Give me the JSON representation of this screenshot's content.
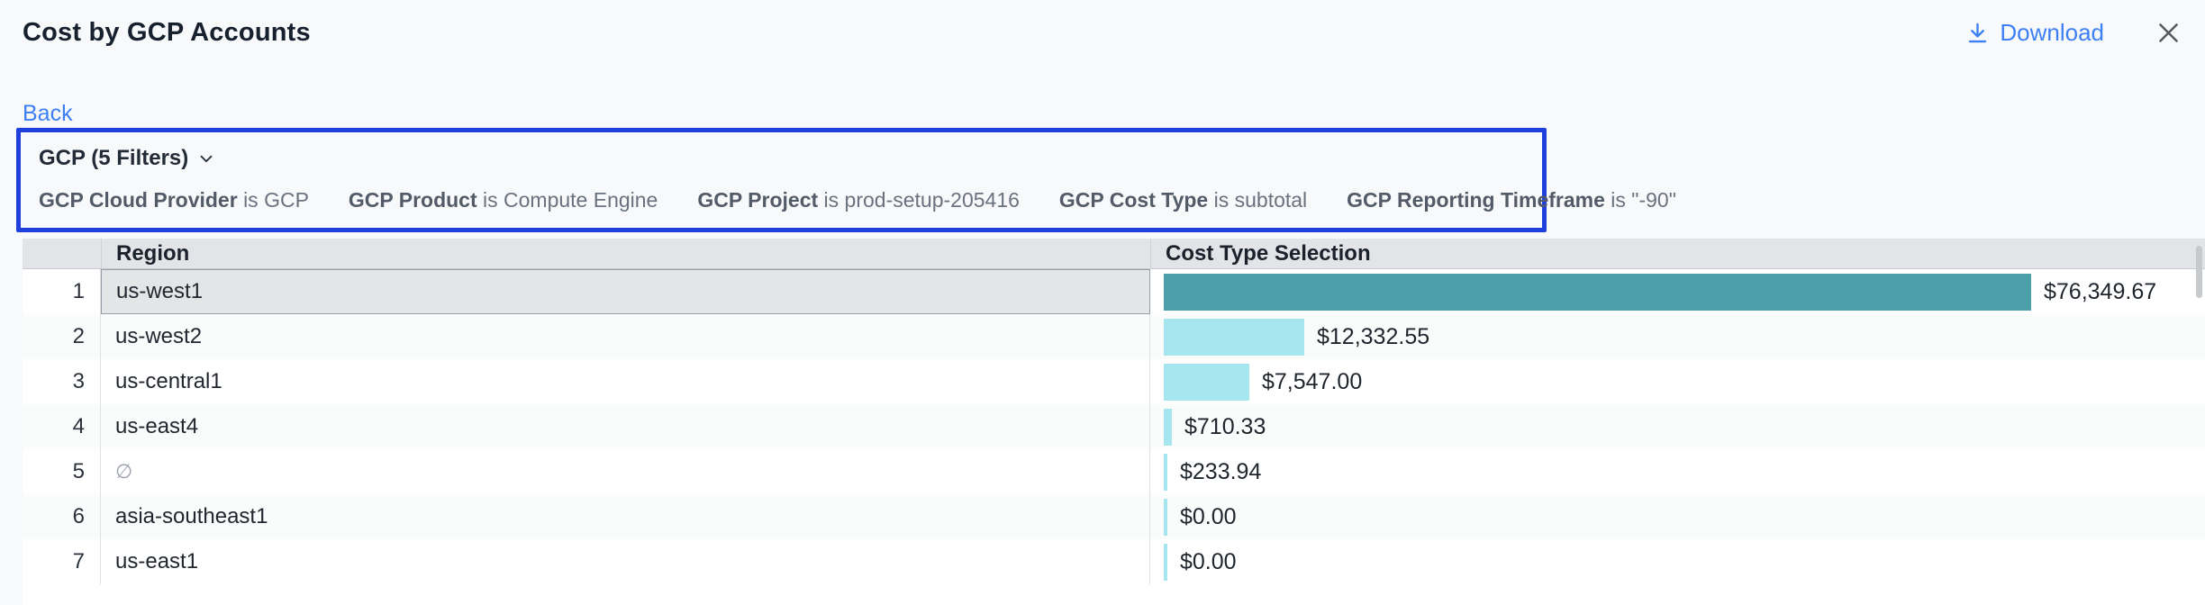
{
  "header": {
    "title": "Cost by GCP Accounts",
    "download_label": "Download"
  },
  "nav": {
    "back_label": "Back"
  },
  "filter_panel": {
    "summary_label": "GCP (5 Filters)",
    "filters": [
      {
        "field": "GCP Cloud Provider",
        "condition": "is GCP"
      },
      {
        "field": "GCP Product",
        "condition": "is Compute Engine"
      },
      {
        "field": "GCP Project",
        "condition": "is prod-setup-205416"
      },
      {
        "field": "GCP Cost Type",
        "condition": "is subtotal"
      },
      {
        "field": "GCP Reporting Timeframe",
        "condition": "is \"-90\""
      }
    ]
  },
  "table": {
    "columns": [
      "Region",
      "Cost Type Selection"
    ],
    "max_value": 76349.67,
    "rows": [
      {
        "index": 1,
        "region": "us-west1",
        "value": 76349.67,
        "value_label": "$76,349.67",
        "selected": true,
        "region_empty": false
      },
      {
        "index": 2,
        "region": "us-west2",
        "value": 12332.55,
        "value_label": "$12,332.55",
        "selected": false,
        "region_empty": false
      },
      {
        "index": 3,
        "region": "us-central1",
        "value": 7547.0,
        "value_label": "$7,547.00",
        "selected": false,
        "region_empty": false
      },
      {
        "index": 4,
        "region": "us-east4",
        "value": 710.33,
        "value_label": "$710.33",
        "selected": false,
        "region_empty": false
      },
      {
        "index": 5,
        "region": "∅",
        "value": 233.94,
        "value_label": "$233.94",
        "selected": false,
        "region_empty": true
      },
      {
        "index": 6,
        "region": "asia-southeast1",
        "value": 0,
        "value_label": "$0.00",
        "selected": false,
        "region_empty": false
      },
      {
        "index": 7,
        "region": "us-east1",
        "value": 0,
        "value_label": "$0.00",
        "selected": false,
        "region_empty": false
      }
    ]
  },
  "chart_data": {
    "type": "bar",
    "orientation": "horizontal",
    "title": "Cost by GCP Accounts",
    "categories": [
      "us-west1",
      "us-west2",
      "us-central1",
      "us-east4",
      "∅",
      "asia-southeast1",
      "us-east1"
    ],
    "values": [
      76349.67,
      12332.55,
      7547.0,
      710.33,
      233.94,
      0,
      0
    ],
    "value_labels": [
      "$76,349.67",
      "$12,332.55",
      "$7,547.00",
      "$710.33",
      "$233.94",
      "$0.00",
      "$0.00"
    ],
    "xlabel": "Cost Type Selection",
    "ylabel": "Region",
    "xlim": [
      0,
      76349.67
    ]
  },
  "colors": {
    "link_blue": "#3d80f6",
    "filter_border_blue": "#2040dc",
    "bar_primary_teal": "#4a9fa9",
    "bar_secondary_cyan": "#a6e6ef",
    "header_bg": "#e3e4e7",
    "selected_cell_bg": "#e4e5e7"
  }
}
